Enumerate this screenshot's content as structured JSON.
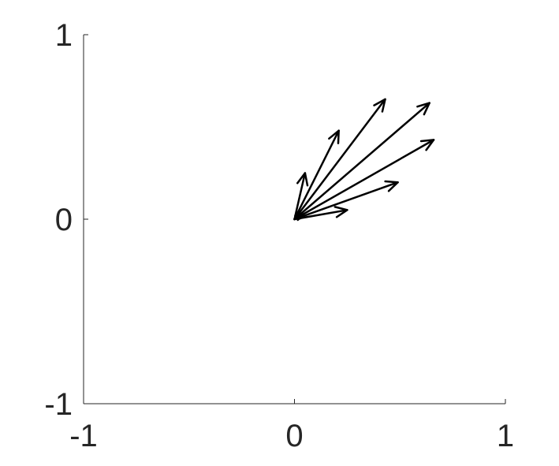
{
  "chart_data": {
    "type": "quiver",
    "xlim": [
      -1,
      1
    ],
    "ylim": [
      -1,
      1
    ],
    "x_ticks": [
      -1,
      0,
      1
    ],
    "y_ticks": [
      -1,
      0,
      1
    ],
    "x_tick_labels": [
      "-1",
      "0",
      "1"
    ],
    "y_tick_labels": [
      "-1",
      "0",
      "1"
    ],
    "grid": false,
    "origin": [
      0,
      0
    ],
    "arrow_color": "#000000",
    "axis_color": "#262626",
    "vectors": [
      {
        "u": 0.25,
        "v": 0.05
      },
      {
        "u": 0.49,
        "v": 0.2
      },
      {
        "u": 0.66,
        "v": 0.43
      },
      {
        "u": 0.64,
        "v": 0.63
      },
      {
        "u": 0.43,
        "v": 0.65
      },
      {
        "u": 0.21,
        "v": 0.48
      },
      {
        "u": 0.05,
        "v": 0.25
      },
      {
        "u": 0.04,
        "v": 0.02
      },
      {
        "u": 0.02,
        "v": 0.03
      },
      {
        "u": 0.03,
        "v": 0.01
      }
    ]
  }
}
